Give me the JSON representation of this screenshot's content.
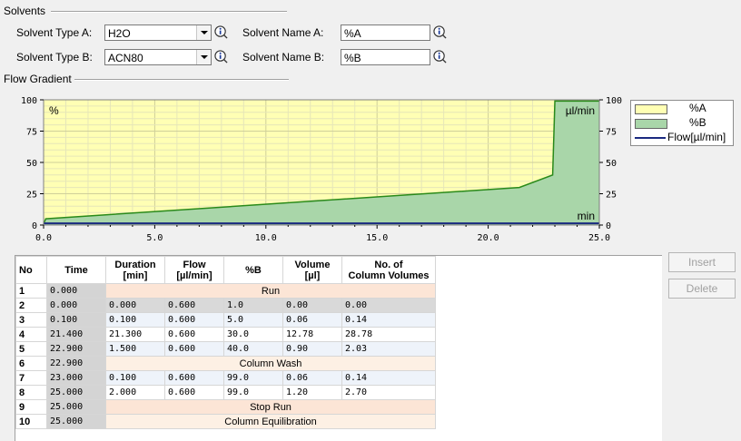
{
  "solvents": {
    "title": "Solvents",
    "type_a_label": "Solvent Type A:",
    "type_a_value": "H2O",
    "type_b_label": "Solvent Type B:",
    "type_b_value": "ACN80",
    "name_a_label": "Solvent Name A:",
    "name_a_value": "%A",
    "name_b_label": "Solvent Name B:",
    "name_b_value": "%B"
  },
  "gradient": {
    "title": "Flow Gradient"
  },
  "chart_data": {
    "type": "area",
    "x_unit": "min",
    "left_unit": "%",
    "right_unit": "µl/min",
    "xlim": [
      0,
      25
    ],
    "ylim_left": [
      0,
      100
    ],
    "ylim_right": [
      0,
      100
    ],
    "x_ticks": [
      "0.0",
      "5.0",
      "10.0",
      "15.0",
      "20.0",
      "25.0"
    ],
    "y_ticks_left": [
      "0",
      "25",
      "50",
      "75",
      "100"
    ],
    "y_ticks_right": [
      "0",
      "25",
      "50",
      "75",
      "100"
    ],
    "grid": true,
    "series": [
      {
        "name": "%A",
        "color": "#ffffb4",
        "x": [
          0,
          0.1,
          21.4,
          22.9,
          23.0,
          25.0
        ],
        "values": [
          99,
          95,
          70,
          60,
          1,
          1
        ]
      },
      {
        "name": "%B",
        "color": "#a9d6a9",
        "line_color": "#2a8a1a",
        "x": [
          0,
          0.1,
          21.4,
          22.9,
          23.0,
          25.0
        ],
        "values": [
          1,
          5,
          30,
          40,
          99,
          99
        ]
      },
      {
        "name": "Flow[µl/min]",
        "color": "#1a2a80",
        "x": [
          0,
          25
        ],
        "values": [
          0.6,
          0.6
        ]
      }
    ]
  },
  "buttons": {
    "insert": "Insert",
    "delete": "Delete"
  },
  "table": {
    "headers": [
      "No",
      "Time",
      "Duration\n[min]",
      "Flow\n[µl/min]",
      "%B",
      "Volume\n[µl]",
      "No. of\nColumn Volumes"
    ],
    "rows": [
      {
        "no": "1",
        "time": "0.000",
        "event": "Run"
      },
      {
        "no": "2",
        "time": "0.000",
        "cells": [
          "0.000",
          "0.600",
          "1.0",
          "0.00",
          "0.00"
        ]
      },
      {
        "no": "3",
        "time": "0.100",
        "cells": [
          "0.100",
          "0.600",
          "5.0",
          "0.06",
          "0.14"
        ]
      },
      {
        "no": "4",
        "time": "21.400",
        "cells": [
          "21.300",
          "0.600",
          "30.0",
          "12.78",
          "28.78"
        ]
      },
      {
        "no": "5",
        "time": "22.900",
        "cells": [
          "1.500",
          "0.600",
          "40.0",
          "0.90",
          "2.03"
        ]
      },
      {
        "no": "6",
        "time": "22.900",
        "event": "Column Wash"
      },
      {
        "no": "7",
        "time": "23.000",
        "cells": [
          "0.100",
          "0.600",
          "99.0",
          "0.06",
          "0.14"
        ]
      },
      {
        "no": "8",
        "time": "25.000",
        "cells": [
          "2.000",
          "0.600",
          "99.0",
          "1.20",
          "2.70"
        ]
      },
      {
        "no": "9",
        "time": "25.000",
        "event": "Stop Run"
      },
      {
        "no": "10",
        "time": "25.000",
        "event": "Column Equilibration"
      }
    ]
  }
}
